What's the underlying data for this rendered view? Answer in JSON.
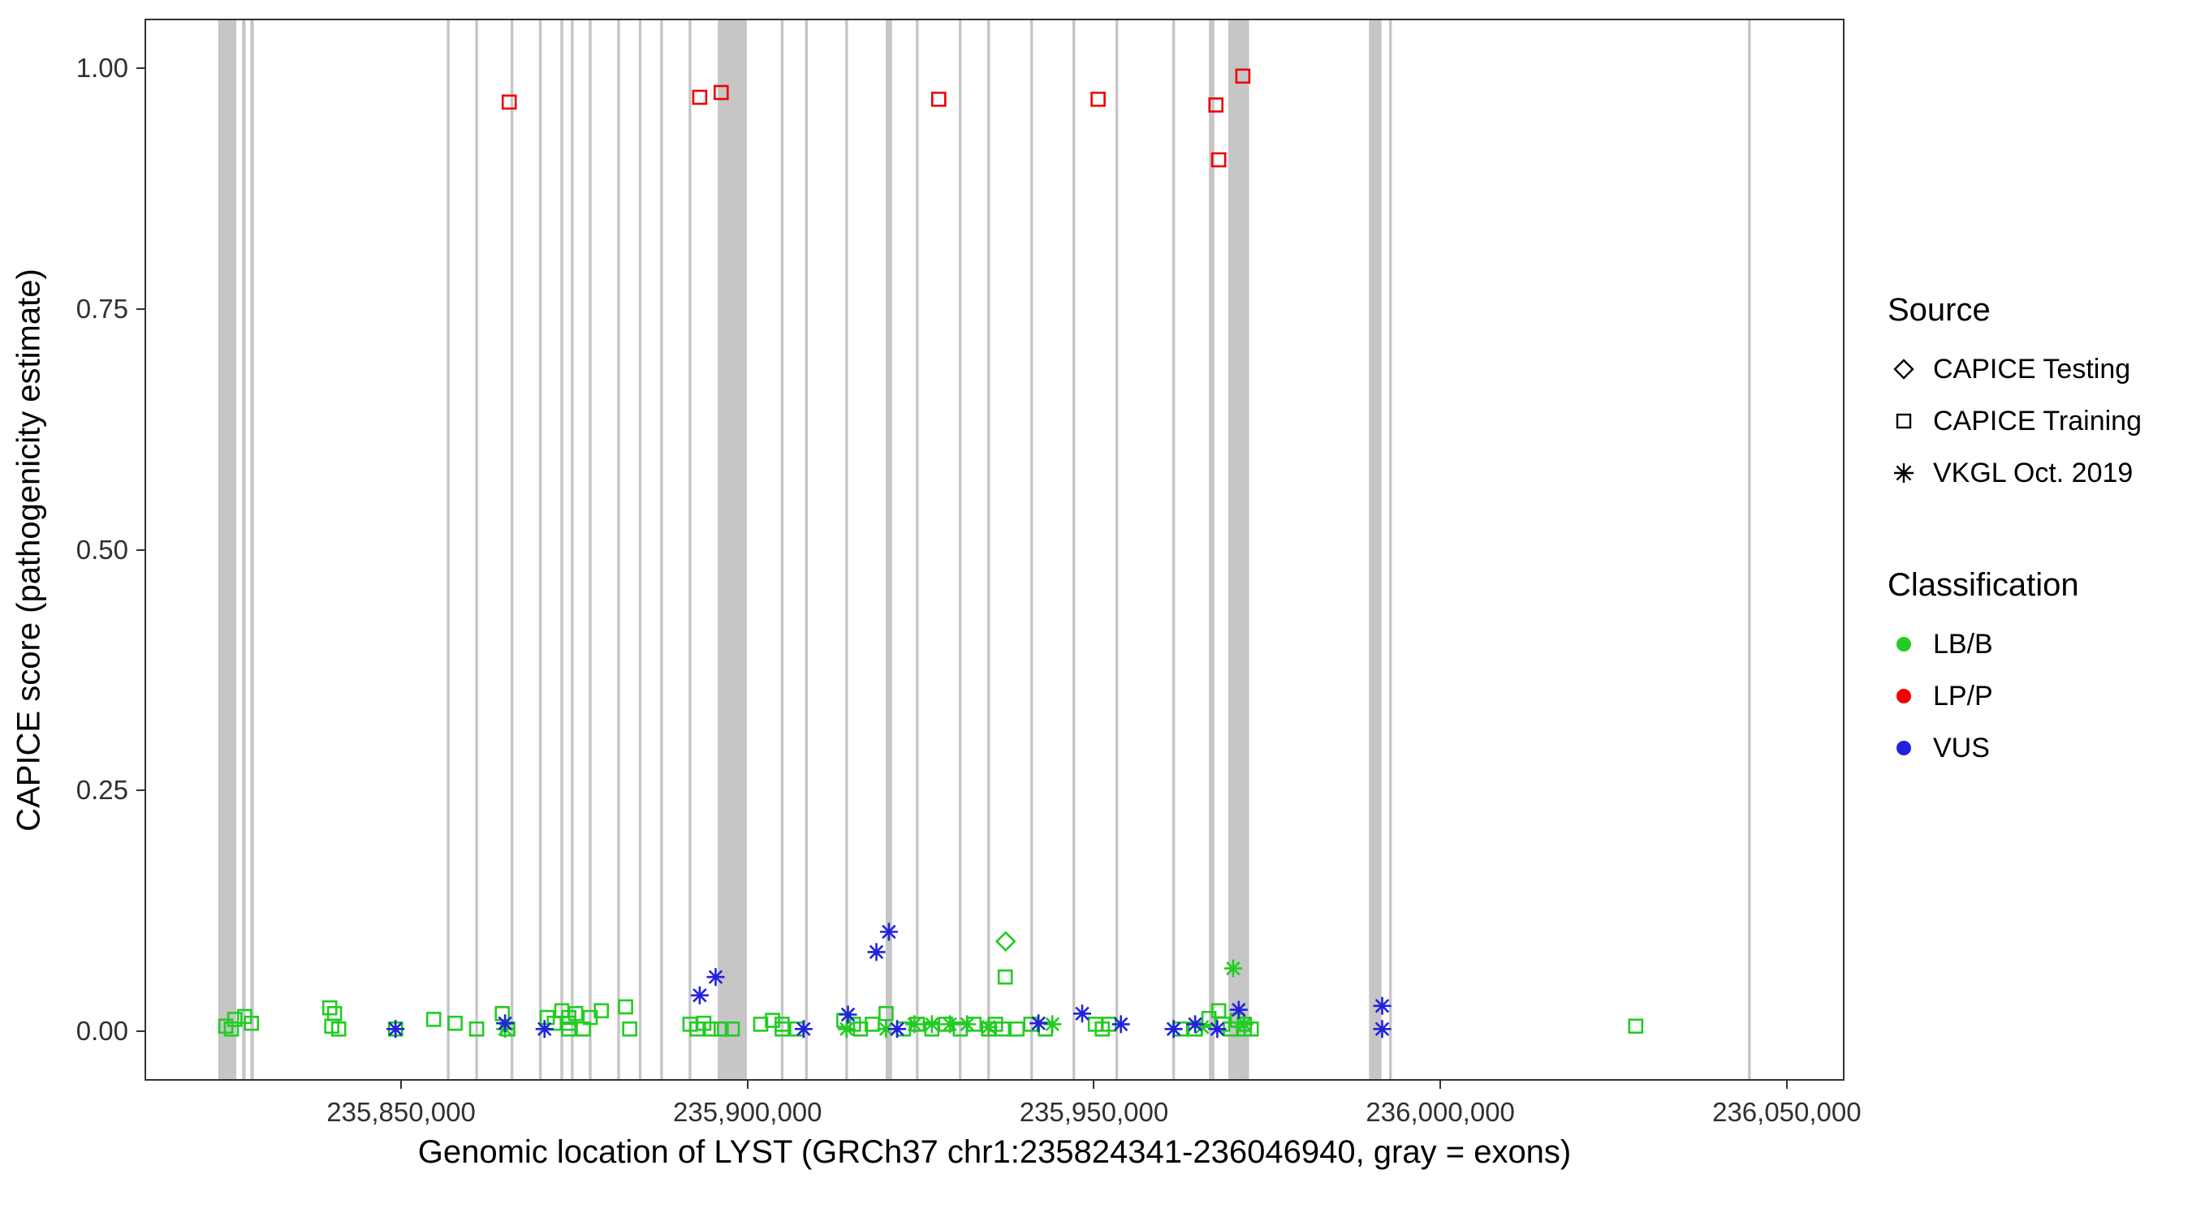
{
  "axes": {
    "x_label": "Genomic location of LYST (GRCh37 chr1:235824341-236046940, gray = exons)",
    "y_label": "CAPICE score (pathogenicity estimate)",
    "x_ticks": [
      {
        "value": 235850000,
        "label": "235,850,000"
      },
      {
        "value": 235900000,
        "label": "235,900,000"
      },
      {
        "value": 235950000,
        "label": "235,950,000"
      },
      {
        "value": 236000000,
        "label": "236,000,000"
      },
      {
        "value": 236050000,
        "label": "236,050,000"
      }
    ],
    "y_ticks": [
      {
        "value": 0.0,
        "label": "0.00"
      },
      {
        "value": 0.25,
        "label": "0.25"
      },
      {
        "value": 0.5,
        "label": "0.50"
      },
      {
        "value": 0.75,
        "label": "0.75"
      },
      {
        "value": 1.0,
        "label": "1.00"
      }
    ]
  },
  "legend": {
    "source_title": "Source",
    "source_items": [
      {
        "label": "CAPICE Testing",
        "shape": "diamond"
      },
      {
        "label": "CAPICE Training",
        "shape": "square"
      },
      {
        "label": "VKGL Oct. 2019",
        "shape": "asterisk"
      }
    ],
    "classification_title": "Classification",
    "classification_items": [
      {
        "label": "LB/B",
        "color": "#22CC22"
      },
      {
        "label": "LP/P",
        "color": "#EE0000"
      },
      {
        "label": "VUS",
        "color": "#2222DD"
      }
    ]
  },
  "chart_data": {
    "type": "scatter",
    "title": "",
    "xlabel": "Genomic location of LYST (GRCh37 chr1:235824341-236046940, gray = exons)",
    "ylabel": "CAPICE score (pathogenicity estimate)",
    "x_domain": [
      235813200,
      236058100
    ],
    "y_domain": [
      -0.05,
      1.05
    ],
    "grid": false,
    "legend_position": "right",
    "exon_color": "#C6C6C6",
    "exons": [
      [
        235824900,
        2600
      ],
      [
        235827300,
        500
      ],
      [
        235828500,
        500
      ],
      [
        235856800,
        400
      ],
      [
        235860900,
        400
      ],
      [
        235866000,
        400
      ],
      [
        235870100,
        400
      ],
      [
        235873200,
        400
      ],
      [
        235874700,
        400
      ],
      [
        235877300,
        400
      ],
      [
        235881400,
        400
      ],
      [
        235884500,
        400
      ],
      [
        235887600,
        400
      ],
      [
        235891700,
        400
      ],
      [
        235897800,
        4200
      ],
      [
        235905000,
        400
      ],
      [
        235908500,
        400
      ],
      [
        235914300,
        400
      ],
      [
        235920400,
        900
      ],
      [
        235924500,
        400
      ],
      [
        235930700,
        400
      ],
      [
        235934800,
        400
      ],
      [
        235941000,
        400
      ],
      [
        235947100,
        400
      ],
      [
        235953300,
        400
      ],
      [
        235961500,
        400
      ],
      [
        235967000,
        800
      ],
      [
        235970900,
        3000
      ],
      [
        235990600,
        1800
      ],
      [
        235992800,
        400
      ],
      [
        236044600,
        400
      ]
    ],
    "series": [
      {
        "name": "CAPICE Training / LB/B",
        "source": "CAPICE Training",
        "classification": "LB/B",
        "shape": "square",
        "color": "#22CC22",
        "points": [
          [
            235824700,
            0.005
          ],
          [
            235825500,
            0.002
          ],
          [
            235826000,
            0.012
          ],
          [
            235827400,
            0.015
          ],
          [
            235828400,
            0.008
          ],
          [
            235839700,
            0.024
          ],
          [
            235840000,
            0.005
          ],
          [
            235840400,
            0.018
          ],
          [
            235841000,
            0.002
          ],
          [
            235849200,
            0.002
          ],
          [
            235854700,
            0.012
          ],
          [
            235857800,
            0.008
          ],
          [
            235860900,
            0.002
          ],
          [
            235864600,
            0.018
          ],
          [
            235865400,
            0.002
          ],
          [
            235871100,
            0.014
          ],
          [
            235872100,
            0.008
          ],
          [
            235873200,
            0.021
          ],
          [
            235874200,
            0.014
          ],
          [
            235874200,
            0.008
          ],
          [
            235874200,
            0.002
          ],
          [
            235875200,
            0.018
          ],
          [
            235876300,
            0.002
          ],
          [
            235877300,
            0.014
          ],
          [
            235878900,
            0.021
          ],
          [
            235882400,
            0.025
          ],
          [
            235883000,
            0.002
          ],
          [
            235891700,
            0.007
          ],
          [
            235892700,
            0.002
          ],
          [
            235893700,
            0.008
          ],
          [
            235894800,
            0.002
          ],
          [
            235896200,
            0.002
          ],
          [
            235897800,
            0.002
          ],
          [
            235901900,
            0.007
          ],
          [
            235903600,
            0.011
          ],
          [
            235905000,
            0.007
          ],
          [
            235905000,
            0.002
          ],
          [
            235907100,
            0.002
          ],
          [
            235913900,
            0.011
          ],
          [
            235915300,
            0.007
          ],
          [
            235916300,
            0.002
          ],
          [
            235918000,
            0.007
          ],
          [
            235920000,
            0.018
          ],
          [
            235922500,
            0.002
          ],
          [
            235924500,
            0.007
          ],
          [
            235926600,
            0.002
          ],
          [
            235928600,
            0.007
          ],
          [
            235930700,
            0.002
          ],
          [
            235932700,
            0.007
          ],
          [
            235934800,
            0.002
          ],
          [
            235935800,
            0.007
          ],
          [
            235936800,
            0.002
          ],
          [
            235937200,
            0.056
          ],
          [
            235938900,
            0.002
          ],
          [
            235940900,
            0.007
          ],
          [
            235943000,
            0.002
          ],
          [
            235950200,
            0.007
          ],
          [
            235951200,
            0.002
          ],
          [
            235952200,
            0.007
          ],
          [
            235962500,
            0.002
          ],
          [
            235964600,
            0.002
          ],
          [
            235966600,
            0.013
          ],
          [
            235968000,
            0.021
          ],
          [
            235968600,
            0.007
          ],
          [
            235969700,
            0.002
          ],
          [
            235970700,
            0.011
          ],
          [
            235971700,
            0.007
          ],
          [
            235971700,
            0.002
          ],
          [
            235972700,
            0.002
          ],
          [
            236028200,
            0.005
          ]
        ]
      },
      {
        "name": "VKGL Oct. 2019 / LB/B",
        "source": "VKGL Oct. 2019",
        "classification": "LB/B",
        "shape": "asterisk",
        "color": "#22CC22",
        "points": [
          [
            235849200,
            0.002
          ],
          [
            235865000,
            0.002
          ],
          [
            235914300,
            0.002
          ],
          [
            235920000,
            0.002
          ],
          [
            235924100,
            0.007
          ],
          [
            235926600,
            0.007
          ],
          [
            235929200,
            0.007
          ],
          [
            235931700,
            0.007
          ],
          [
            235934800,
            0.004
          ],
          [
            235944000,
            0.007
          ],
          [
            235961500,
            0.002
          ],
          [
            235965600,
            0.004
          ],
          [
            235970100,
            0.065
          ],
          [
            235971700,
            0.007
          ]
        ]
      },
      {
        "name": "VKGL Oct. 2019 / VUS",
        "source": "VKGL Oct. 2019",
        "classification": "VUS",
        "shape": "asterisk",
        "color": "#2222DD",
        "points": [
          [
            235849200,
            0.002
          ],
          [
            235865000,
            0.008
          ],
          [
            235870700,
            0.002
          ],
          [
            235893100,
            0.037
          ],
          [
            235895400,
            0.056
          ],
          [
            235908100,
            0.002
          ],
          [
            235914500,
            0.017
          ],
          [
            235918600,
            0.082
          ],
          [
            235920400,
            0.103
          ],
          [
            235921600,
            0.002
          ],
          [
            235942000,
            0.008
          ],
          [
            235948300,
            0.018
          ],
          [
            235953900,
            0.007
          ],
          [
            235961500,
            0.002
          ],
          [
            235964600,
            0.007
          ],
          [
            235967800,
            0.002
          ],
          [
            235970900,
            0.022
          ],
          [
            235991600,
            0.026
          ],
          [
            235991600,
            0.002
          ]
        ]
      },
      {
        "name": "CAPICE Training / LP/P",
        "source": "CAPICE Training",
        "classification": "LP/P",
        "shape": "square",
        "color": "#EE0000",
        "points": [
          [
            235865600,
            0.965
          ],
          [
            235893100,
            0.97
          ],
          [
            235896200,
            0.975
          ],
          [
            235927600,
            0.968
          ],
          [
            235950600,
            0.968
          ],
          [
            235967600,
            0.962
          ],
          [
            235968000,
            0.905
          ],
          [
            235971500,
            0.992
          ]
        ]
      },
      {
        "name": "CAPICE Testing / LB/B",
        "source": "CAPICE Testing",
        "classification": "LB/B",
        "shape": "diamond",
        "color": "#22CC22",
        "points": [
          [
            235937250,
            0.093
          ]
        ]
      }
    ]
  }
}
